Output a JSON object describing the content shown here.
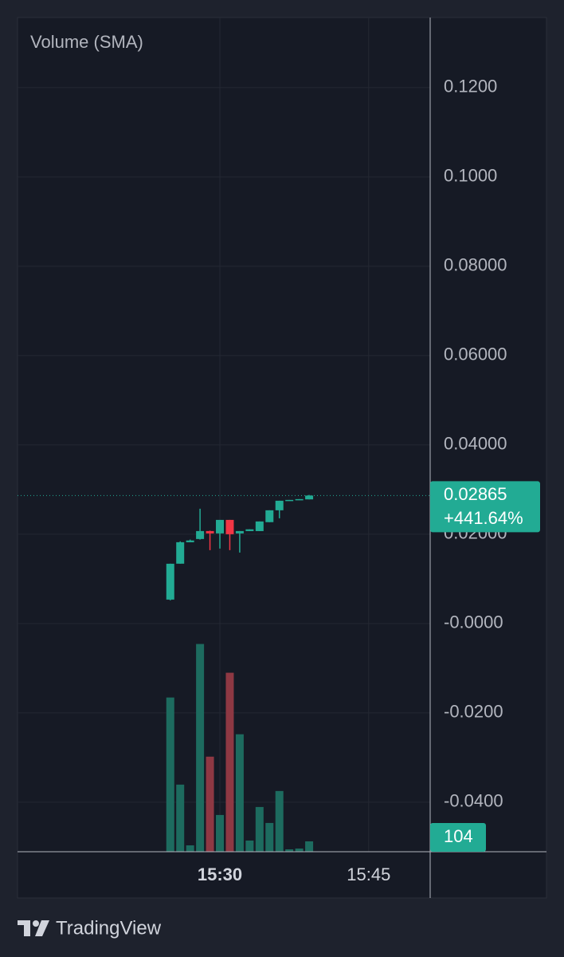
{
  "chart_data": {
    "type": "candlestick",
    "legend_label": "Volume (SMA)",
    "brand": "TradingView",
    "x": [
      "15:25",
      "15:26",
      "15:27",
      "15:28",
      "15:29",
      "15:30",
      "15:31",
      "15:32",
      "15:33",
      "15:34",
      "15:35",
      "15:36",
      "15:37",
      "15:38",
      "15:39"
    ],
    "open": [
      0.00536,
      0.0134,
      0.0182,
      0.01893,
      0.02071,
      0.02018,
      0.02321,
      0.02018,
      0.0207,
      0.0207,
      0.0227,
      0.02536,
      0.0275,
      0.02768,
      0.0278
    ],
    "high": [
      0.0134,
      0.0184,
      0.0188,
      0.02571,
      0.0208,
      0.0232,
      0.02321,
      0.02071,
      0.0211,
      0.02286,
      0.02536,
      0.0275,
      0.02768,
      0.02786,
      0.0288
    ],
    "low": [
      0.0052,
      0.0134,
      0.0182,
      0.0188,
      0.01643,
      0.01679,
      0.01643,
      0.01589,
      0.0207,
      0.0207,
      0.0227,
      0.02357,
      0.0275,
      0.02768,
      0.0278
    ],
    "close": [
      0.01339,
      0.01821,
      0.0186,
      0.02071,
      0.02018,
      0.02321,
      0.02,
      0.02071,
      0.0211,
      0.02286,
      0.02536,
      0.0275,
      0.02768,
      0.02786,
      0.02865
    ],
    "volume": [
      1544,
      672,
      64,
      2080,
      952,
      368,
      1792,
      1176,
      112,
      448,
      288,
      608,
      24,
      32,
      104
    ],
    "change_label": "+441.64%",
    "xlim": [
      "15:09:36",
      "15:51:12"
    ],
    "xticks": [
      "15:30",
      "15:45"
    ],
    "ylim": [
      -0.0511,
      0.1357
    ],
    "yticks": [
      {
        "value": 0.12,
        "label": "0.1200"
      },
      {
        "value": 0.1,
        "label": "0.1000"
      },
      {
        "value": 0.08,
        "label": "0.08000"
      },
      {
        "value": 0.06,
        "label": "0.06000"
      },
      {
        "value": 0.04,
        "label": "0.04000"
      },
      {
        "value": 0.02,
        "label": "0.02000"
      },
      {
        "value": 0,
        "label": "-0.0000"
      },
      {
        "value": -0.02,
        "label": "-0.0200"
      },
      {
        "value": -0.04,
        "label": "-0.0400"
      }
    ],
    "volume_ylim": [
      0,
      8352
    ],
    "grid": true,
    "up_color": "#22ab94",
    "down_color": "#f23645",
    "volume_up_color": "#1d6b5f",
    "volume_down_color": "#8e3843"
  }
}
